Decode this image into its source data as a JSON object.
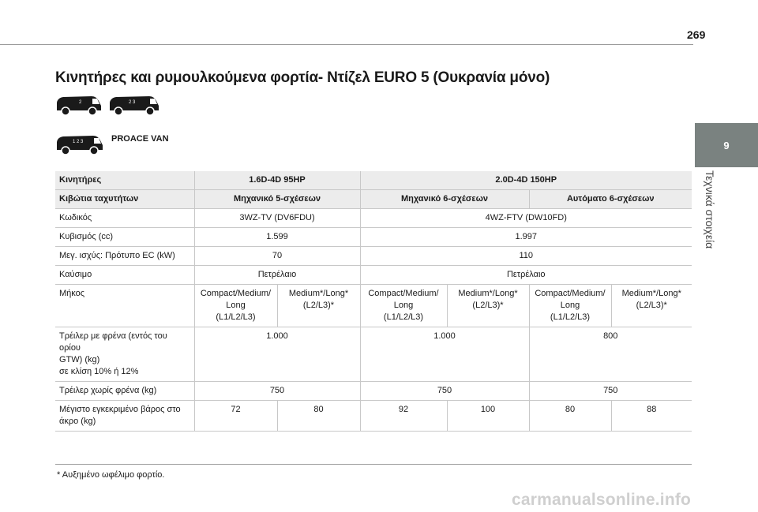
{
  "page": {
    "number": "269",
    "chapter_tab": "9",
    "chapter_label": "Τεχνικά στοιχεία",
    "heading": "Κινητήρες και ρυμουλκούμενα φορτία- Ντίζελ EURO 5 (Ουκρανία μόνο)",
    "model": "PROACE VAN",
    "footnote": "*  Αυξημένο ωφέλιμο φορτίο.",
    "watermark": "carmanualsonline.info"
  },
  "vans": {
    "van1_marks": "2",
    "van2_marks": "2 3",
    "van3_marks": "1 2 3"
  },
  "table": {
    "row_engines": {
      "label": "Κινητήρες",
      "e1": "1.6D-4D 95HP",
      "e2": "2.0D-4D 150HP"
    },
    "row_gearbox": {
      "label": "Κιβώτια ταχυτήτων",
      "g1": "Μηχανικό 5-σχέσεων",
      "g2": "Μηχανικό 6-σχέσεων",
      "g3": "Αυτόματο 6-σχέσεων"
    },
    "row_code": {
      "label": "Κωδικός",
      "v1": "3WZ-TV (DV6FDU)",
      "v2": "4WZ-FTV (DW10FD)"
    },
    "row_displacement": {
      "label": "Κυβισμός (cc)",
      "v1": "1.599",
      "v2": "1.997"
    },
    "row_power": {
      "label": "Μεγ. ισχύς: Πρότυπο EC (kW)",
      "v1": "70",
      "v2": "110"
    },
    "row_fuel": {
      "label": "Καύσιμο",
      "v1": "Πετρέλαιο",
      "v2": "Πετρέλαιο"
    },
    "row_length": {
      "label": "Μήκος",
      "l1a": "Compact/Medium/",
      "l1b": "Long",
      "l1c": "(L1/L2/L3)",
      "l2a": "Medium*/Long*",
      "l2b": "(L2/L3)*",
      "l3a": "Compact/Medium/",
      "l3b": "Long",
      "l3c": "(L1/L2/L3)",
      "l4a": "Medium*/Long*",
      "l4b": "(L2/L3)*",
      "l5a": "Compact/Medium/",
      "l5b": "Long",
      "l5c": "(L1/L2/L3)",
      "l6a": "Medium*/Long*",
      "l6b": "(L2/L3)*"
    },
    "row_braked": {
      "label_a": "Τρέιλερ με φρένα (εντός του ορίου",
      "label_b": "GTW) (kg)",
      "label_c": "σε κλίση 10% ή 12%",
      "v1": "1.000",
      "v2": "1.000",
      "v3": "800"
    },
    "row_unbraked": {
      "label": "Τρέιλερ χωρίς φρένα (kg)",
      "v1": "750",
      "v2": "750",
      "v3": "750"
    },
    "row_noseweight": {
      "label_a": "Μέγιστο εγκεκριμένο βάρος στο",
      "label_b": "άκρο (kg)",
      "v1": "72",
      "v2": "80",
      "v3": "92",
      "v4": "100",
      "v5": "80",
      "v6": "88"
    }
  },
  "colors": {
    "side_tab": "#7a8280",
    "row_shade": "#ececec",
    "rule": "#9a9a9a"
  }
}
